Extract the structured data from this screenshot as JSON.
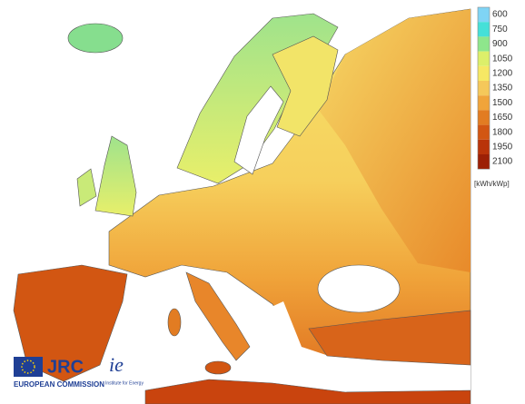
{
  "legend": {
    "ticks": [
      600,
      750,
      900,
      1050,
      1200,
      1350,
      1500,
      1650,
      1800,
      1950,
      2100
    ],
    "colors": [
      "#7fd4f5",
      "#45e0d8",
      "#8ee68c",
      "#dcef6a",
      "#f6e864",
      "#f5c85a",
      "#f0a43a",
      "#e27c22",
      "#d25612",
      "#b9340a",
      "#9c2006"
    ],
    "unit": "[kWh/kWp]"
  },
  "logos": {
    "jrc": "JRC",
    "commission": "EUROPEAN COMMISSION",
    "ie": "ie",
    "institute": "Institute for Energy"
  }
}
